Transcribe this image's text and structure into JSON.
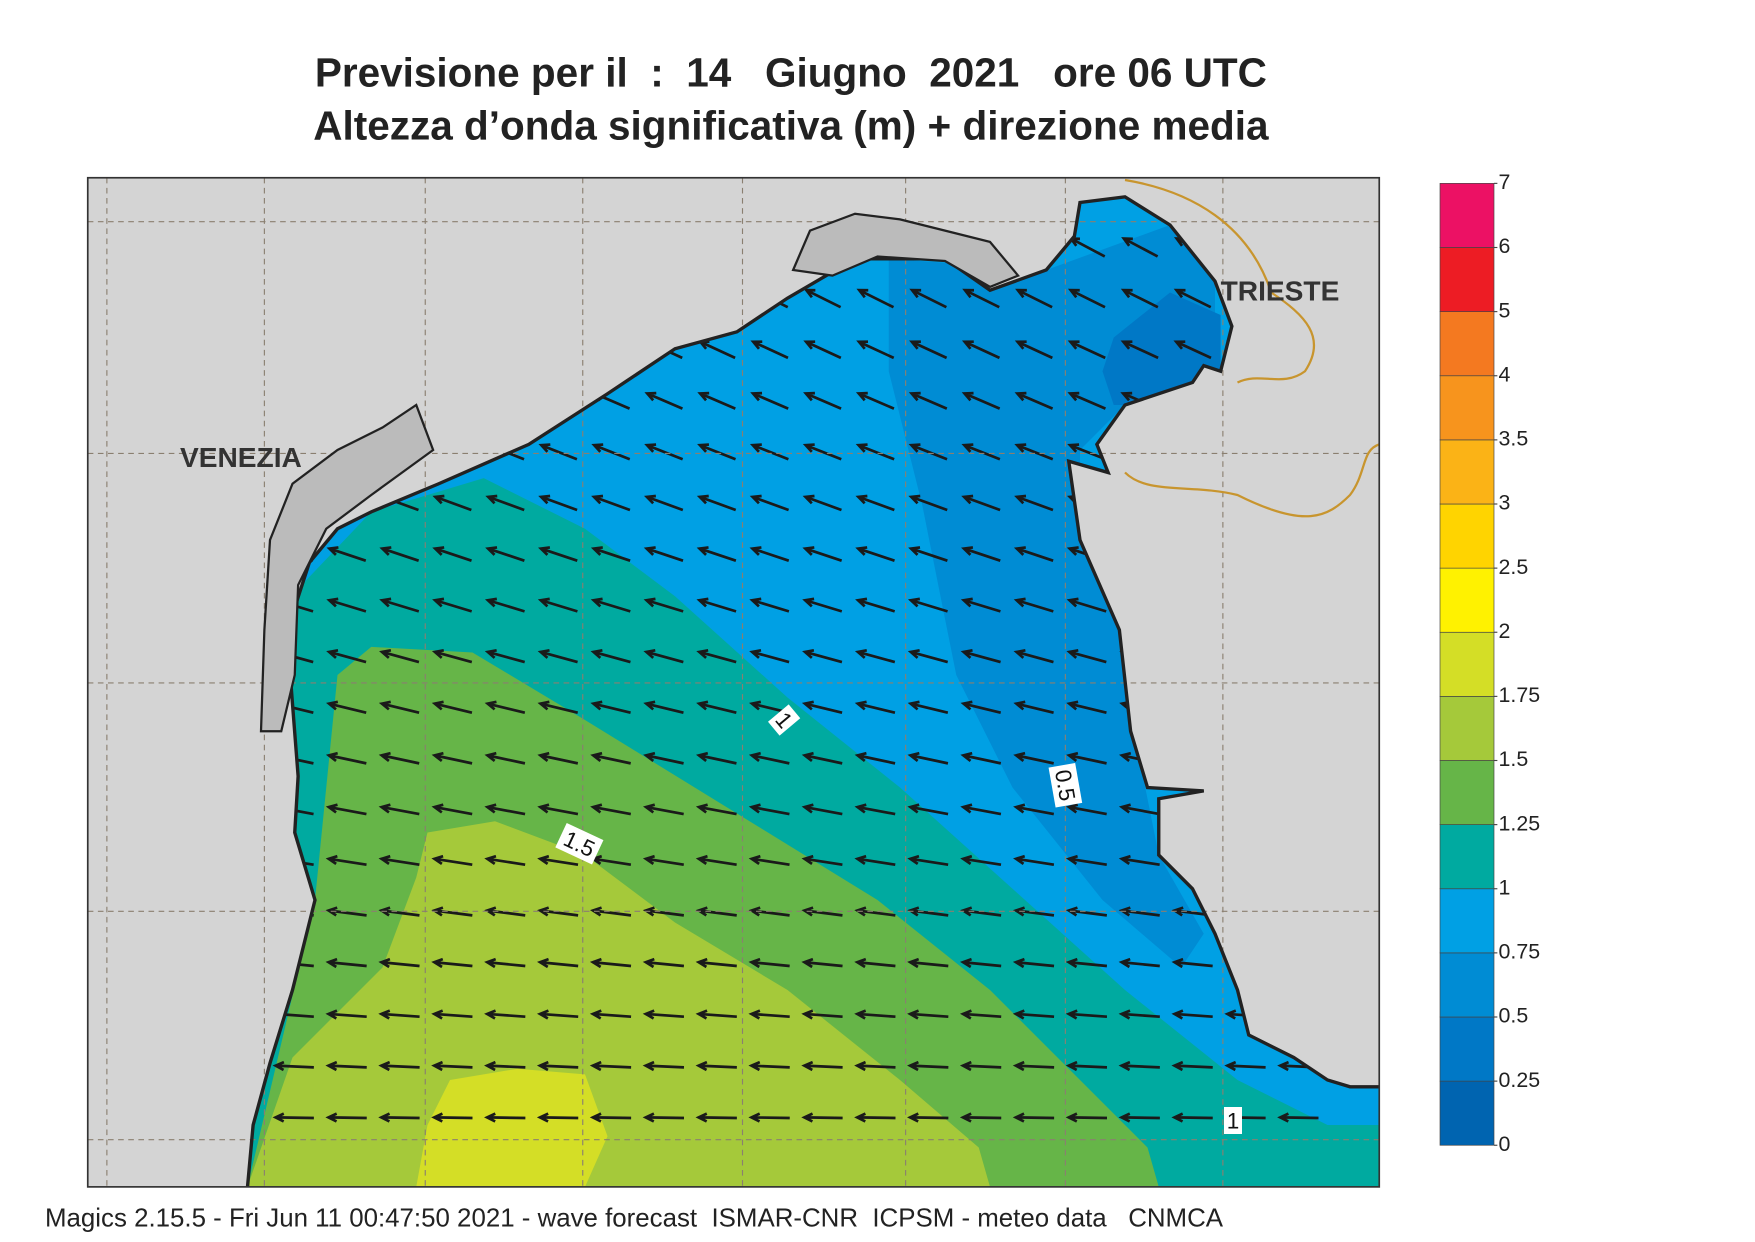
{
  "header": {
    "title": "Previsione per il  :  14   Giugno  2021   ore 06 UTC",
    "subtitle": "Altezza d’onda significativa (m) + direzione media"
  },
  "map": {
    "places": [
      "VENEZIA",
      "TRIESTE"
    ],
    "contour_labels": [
      "1",
      "0.5",
      "1.5",
      "1"
    ]
  },
  "legend": {
    "levels": [
      0,
      0.25,
      0.5,
      0.75,
      1,
      1.25,
      1.5,
      1.75,
      2,
      2.5,
      3,
      3.5,
      4,
      5,
      6,
      7
    ],
    "colors": [
      "#0064b0",
      "#0078c6",
      "#008cd4",
      "#00a0e4",
      "#00aaa0",
      "#66b548",
      "#a5c93a",
      "#d4de26",
      "#fff200",
      "#ffd400",
      "#fbb316",
      "#f7941d",
      "#f47920",
      "#ed1c24",
      "#ec1164"
    ]
  },
  "footer": "Magics 2.15.5 - Fri Jun 11 00:47:50 2021 - wave forecast  ISMAR-CNR  ICPSM - meteo data   CNMCA"
}
